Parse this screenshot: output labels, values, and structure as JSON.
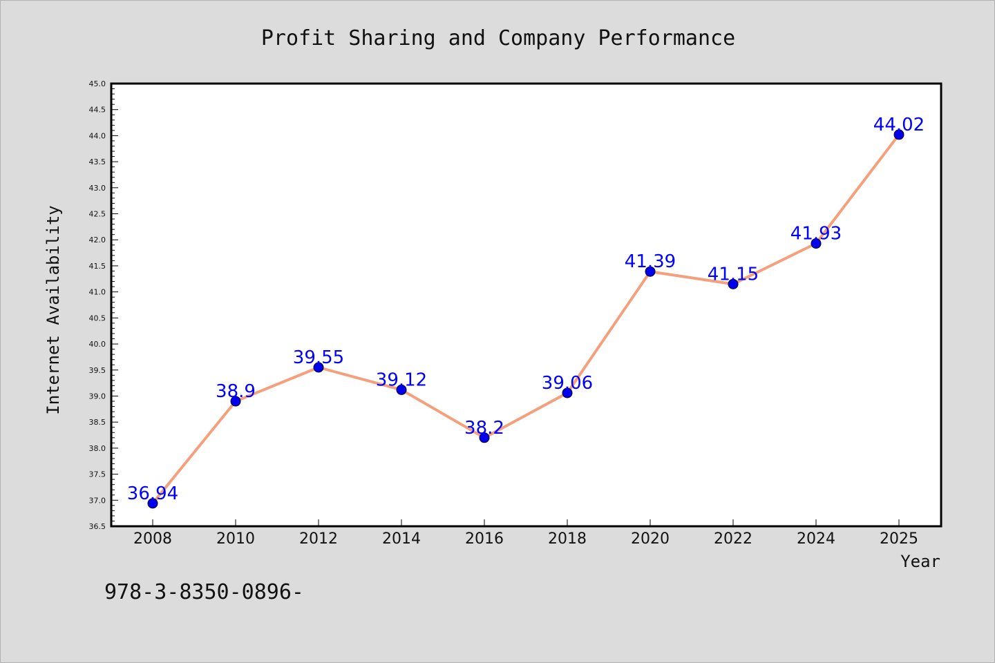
{
  "chart_data": {
    "type": "line",
    "title": "Profit Sharing and Company Performance",
    "xlabel": "Year",
    "ylabel": "Internet Availability",
    "categories": [
      "2008",
      "2010",
      "2012",
      "2014",
      "2016",
      "2018",
      "2020",
      "2022",
      "2024",
      "2025"
    ],
    "values": [
      36.94,
      38.9,
      39.55,
      39.12,
      38.2,
      39.06,
      41.39,
      41.15,
      41.93,
      44.02
    ],
    "value_labels": [
      "36.94",
      "38.9",
      "39.55",
      "39.12",
      "38.2",
      "39.06",
      "41.39",
      "41.15",
      "41.93",
      "44.02"
    ],
    "ylim": [
      36.5,
      45.0
    ],
    "yticks": [
      "36.5",
      "37.0",
      "37.5",
      "38.0",
      "38.5",
      "39.0",
      "39.5",
      "40.0",
      "40.5",
      "41.0",
      "41.5",
      "42.0",
      "42.5",
      "43.0",
      "43.5",
      "44.0",
      "44.5",
      "45.0"
    ],
    "grid": false,
    "line_color": "#f4a07c",
    "marker_color": "#0000ee",
    "label_color": "#0000ff"
  },
  "footnote": "978-3-8350-0896-"
}
